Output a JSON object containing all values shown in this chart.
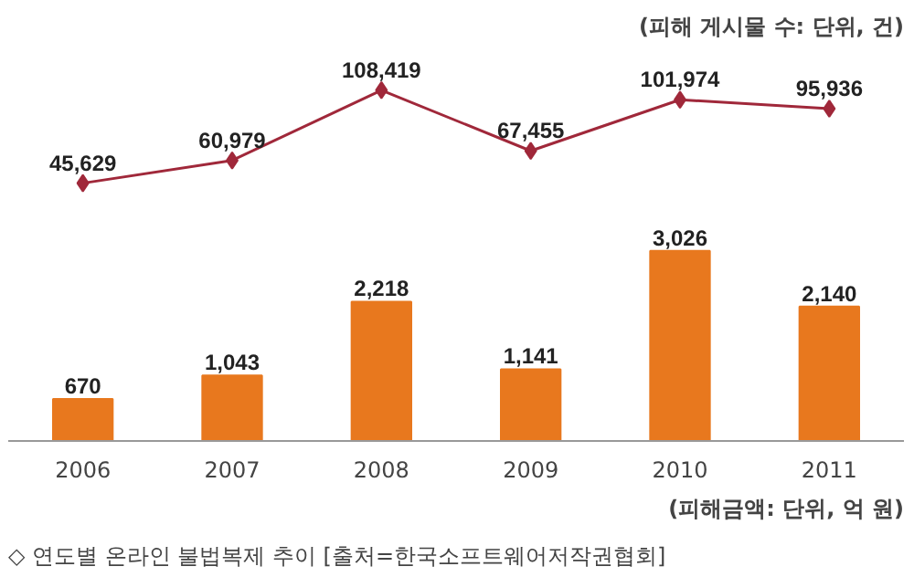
{
  "chart_data": [
    {
      "type": "line",
      "categories": [
        "2006",
        "2007",
        "2008",
        "2009",
        "2010",
        "2011"
      ],
      "tick_labels": false,
      "marker": "diamond",
      "grid": false,
      "series": [
        {
          "color": "#a0283a",
          "values": [
            45629,
            60979,
            108419,
            67455,
            101974,
            95936
          ],
          "value_labels": [
            "45,629",
            "60,979",
            "108,419",
            "67,455",
            "101,974",
            "95,936"
          ]
        }
      ],
      "annotations": [
        "(피해 게시물 수: 단위, 건)"
      ]
    },
    {
      "type": "bar",
      "categories": [
        "2006",
        "2007",
        "2008",
        "2009",
        "2010",
        "2011"
      ],
      "grid": false,
      "series": [
        {
          "color": "#e8781e",
          "values": [
            670,
            1043,
            2218,
            1141,
            3026,
            2140
          ],
          "value_labels": [
            "670",
            "1,043",
            "2,218",
            "1,141",
            "3,026",
            "2,140"
          ]
        }
      ],
      "annotations": [
        "(피해금액: 단위, 억 원)",
        "◇ 연도별 온라인 불법복제 추이 [출처=한국소프트웨어저작권협회]"
      ]
    }
  ]
}
